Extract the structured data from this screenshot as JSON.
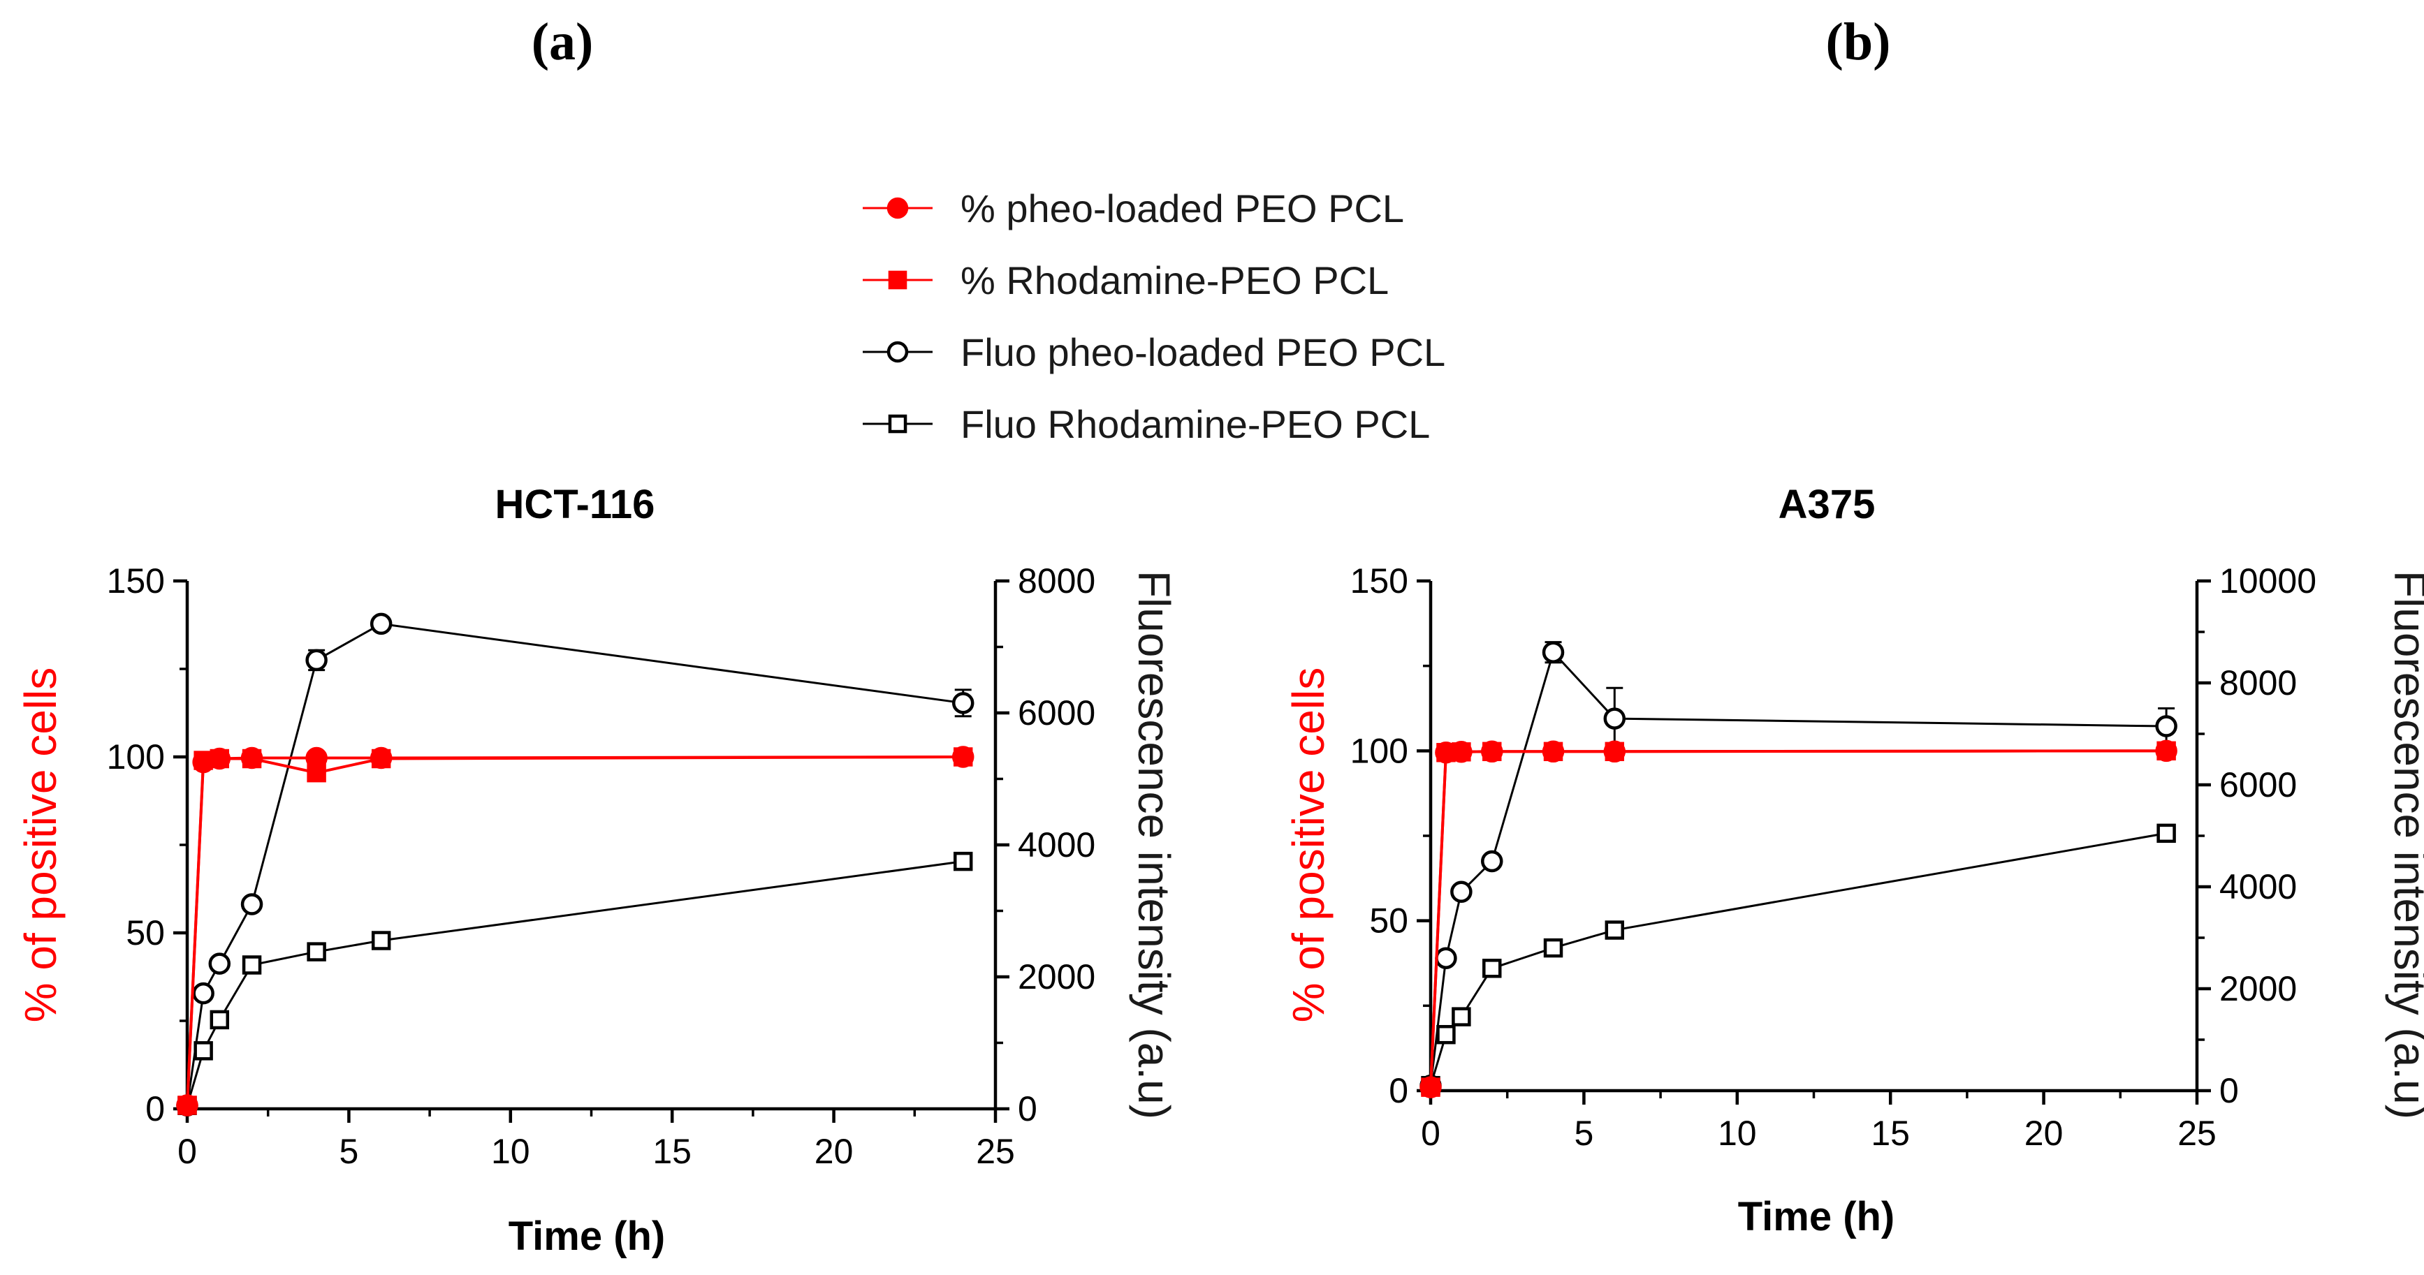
{
  "figure": {
    "panel_labels": [
      "(a)",
      "(b)"
    ],
    "legend": [
      {
        "label": "% pheo-loaded PEO PCL",
        "marker": "circle",
        "filled": true,
        "color": "#ff0000"
      },
      {
        "label": "% Rhodamine-PEO PCL",
        "marker": "square",
        "filled": true,
        "color": "#ff0000"
      },
      {
        "label": "Fluo pheo-loaded PEO PCL",
        "marker": "circle",
        "filled": false,
        "color": "#000000"
      },
      {
        "label": "Fluo Rhodamine-PEO PCL",
        "marker": "square",
        "filled": false,
        "color": "#000000"
      }
    ],
    "colors": {
      "red": "#ff0000",
      "black": "#000000"
    }
  },
  "chart_data": [
    {
      "type": "line",
      "title": "HCT-116",
      "xlabel": "Time (h)",
      "ylabel_left": "% of positive cells",
      "ylabel_right": "Fluorescence intensity (a.u)",
      "xlim": [
        0,
        25
      ],
      "xticks": [
        0,
        5,
        10,
        15,
        20,
        25
      ],
      "ylim_left": [
        0,
        150
      ],
      "yticks_left": [
        0,
        50,
        100,
        150
      ],
      "ylim_right": [
        0,
        8000
      ],
      "yticks_right": [
        0,
        2000,
        4000,
        6000,
        8000
      ],
      "grid": false,
      "series": [
        {
          "name": "% pheo-loaded PEO PCL",
          "axis": "left",
          "marker": "circle",
          "filled": true,
          "color": "#ff0000",
          "x": [
            0,
            0.5,
            1,
            2,
            4,
            6,
            24
          ],
          "y": [
            1,
            98.5,
            99.5,
            99.7,
            99.7,
            99.7,
            100
          ]
        },
        {
          "name": "% Rhodamine-PEO PCL",
          "axis": "left",
          "marker": "square",
          "filled": true,
          "color": "#ff0000",
          "x": [
            0,
            0.5,
            1,
            2,
            4,
            6,
            24
          ],
          "y": [
            1,
            99,
            99.5,
            99.5,
            95.5,
            99.5,
            100
          ]
        },
        {
          "name": "Fluo pheo-loaded PEO PCL",
          "axis": "right",
          "marker": "circle",
          "filled": false,
          "color": "#000000",
          "x": [
            0,
            0.5,
            1,
            2,
            4,
            6,
            24
          ],
          "y": [
            50,
            1750,
            2200,
            3100,
            6800,
            7350,
            6150
          ],
          "err": [
            0,
            0,
            0,
            0,
            150,
            0,
            200
          ]
        },
        {
          "name": "Fluo Rhodamine-PEO PCL",
          "axis": "right",
          "marker": "square",
          "filled": false,
          "color": "#000000",
          "x": [
            0,
            0.5,
            1,
            2,
            4,
            6,
            24
          ],
          "y": [
            50,
            880,
            1350,
            2180,
            2380,
            2550,
            3750
          ]
        }
      ]
    },
    {
      "type": "line",
      "title": "A375",
      "xlabel": "Time (h)",
      "ylabel_left": "% of positive cells",
      "ylabel_right": "Fluorescence intensity (a.u)",
      "xlim": [
        0,
        25
      ],
      "xticks": [
        0,
        5,
        10,
        15,
        20,
        25
      ],
      "ylim_left": [
        0,
        150
      ],
      "yticks_left": [
        0,
        50,
        100,
        150
      ],
      "ylim_right": [
        0,
        10000
      ],
      "yticks_right": [
        0,
        2000,
        4000,
        6000,
        8000,
        10000
      ],
      "grid": false,
      "series": [
        {
          "name": "% pheo-loaded PEO PCL",
          "axis": "left",
          "marker": "circle",
          "filled": true,
          "color": "#ff0000",
          "x": [
            0,
            0.5,
            1,
            2,
            4,
            6,
            24
          ],
          "y": [
            1,
            99.5,
            99.7,
            99.8,
            99.8,
            99.8,
            100
          ]
        },
        {
          "name": "% Rhodamine-PEO PCL",
          "axis": "left",
          "marker": "square",
          "filled": true,
          "color": "#ff0000",
          "x": [
            0,
            0.5,
            1,
            2,
            4,
            6,
            24
          ],
          "y": [
            1,
            99.5,
            99.7,
            99.8,
            99.8,
            99.8,
            100
          ]
        },
        {
          "name": "Fluo pheo-loaded PEO PCL",
          "axis": "right",
          "marker": "circle",
          "filled": false,
          "color": "#000000",
          "x": [
            0,
            0.5,
            1,
            2,
            4,
            6,
            24
          ],
          "y": [
            100,
            2600,
            3900,
            4500,
            8600,
            7300,
            7150
          ],
          "err": [
            0,
            0,
            0,
            0,
            200,
            600,
            350
          ]
        },
        {
          "name": "Fluo Rhodamine-PEO PCL",
          "axis": "right",
          "marker": "square",
          "filled": false,
          "color": "#000000",
          "x": [
            0,
            0.5,
            1,
            2,
            4,
            6,
            24
          ],
          "y": [
            100,
            1100,
            1450,
            2400,
            2800,
            3150,
            5050
          ]
        }
      ]
    }
  ]
}
